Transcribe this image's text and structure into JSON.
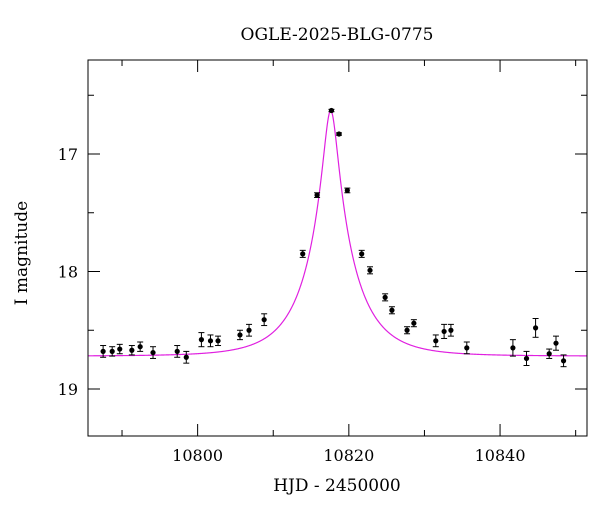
{
  "chart_data": {
    "type": "scatter",
    "title": "OGLE-2025-BLG-0775",
    "xlabel": "HJD - 2450000",
    "ylabel": "I magnitude",
    "xlim": [
      10785.5,
      10851.5
    ],
    "ylim": [
      19.4,
      16.2
    ],
    "y_inverted": true,
    "x_major_ticks": [
      10800,
      10820,
      10840
    ],
    "x_tick_labels": [
      "10800",
      "10820",
      "10840"
    ],
    "x_minor_ticks": [
      10790,
      10810,
      10830,
      10850
    ],
    "y_major_ticks": [
      17,
      18,
      19
    ],
    "y_tick_labels": [
      "17",
      "18",
      "19"
    ],
    "y_minor_ticks": [
      16.5,
      17.5,
      18.5
    ],
    "grid": false,
    "model": {
      "color": "#e020e0",
      "peak_time": 10817.6,
      "peak_mag": 16.63,
      "baseline_mag": 18.72,
      "einstein_time": 6.1
    },
    "series": [
      {
        "color": "#000000",
        "points": [
          {
            "x": 10787.5,
            "y": 18.68,
            "err": 0.05
          },
          {
            "x": 10788.7,
            "y": 18.68,
            "err": 0.04
          },
          {
            "x": 10789.7,
            "y": 18.66,
            "err": 0.04
          },
          {
            "x": 10791.3,
            "y": 18.67,
            "err": 0.04
          },
          {
            "x": 10792.4,
            "y": 18.64,
            "err": 0.04
          },
          {
            "x": 10794.1,
            "y": 18.69,
            "err": 0.05
          },
          {
            "x": 10797.3,
            "y": 18.68,
            "err": 0.05
          },
          {
            "x": 10798.5,
            "y": 18.73,
            "err": 0.05
          },
          {
            "x": 10800.5,
            "y": 18.58,
            "err": 0.06
          },
          {
            "x": 10801.7,
            "y": 18.59,
            "err": 0.05
          },
          {
            "x": 10802.7,
            "y": 18.59,
            "err": 0.04
          },
          {
            "x": 10805.6,
            "y": 18.54,
            "err": 0.04
          },
          {
            "x": 10806.8,
            "y": 18.5,
            "err": 0.05
          },
          {
            "x": 10808.8,
            "y": 18.41,
            "err": 0.05
          },
          {
            "x": 10813.9,
            "y": 17.85,
            "err": 0.03
          },
          {
            "x": 10815.8,
            "y": 17.35,
            "err": 0.02
          },
          {
            "x": 10817.7,
            "y": 16.63,
            "err": 0.01
          },
          {
            "x": 10818.7,
            "y": 16.83,
            "err": 0.01
          },
          {
            "x": 10819.8,
            "y": 17.31,
            "err": 0.02
          },
          {
            "x": 10821.7,
            "y": 17.85,
            "err": 0.03
          },
          {
            "x": 10822.8,
            "y": 17.99,
            "err": 0.03
          },
          {
            "x": 10824.8,
            "y": 18.22,
            "err": 0.03
          },
          {
            "x": 10825.7,
            "y": 18.33,
            "err": 0.03
          },
          {
            "x": 10827.7,
            "y": 18.5,
            "err": 0.03
          },
          {
            "x": 10828.6,
            "y": 18.44,
            "err": 0.03
          },
          {
            "x": 10831.5,
            "y": 18.59,
            "err": 0.05
          },
          {
            "x": 10832.6,
            "y": 18.51,
            "err": 0.06
          },
          {
            "x": 10833.5,
            "y": 18.5,
            "err": 0.05
          },
          {
            "x": 10835.6,
            "y": 18.65,
            "err": 0.05
          },
          {
            "x": 10841.7,
            "y": 18.65,
            "err": 0.07
          },
          {
            "x": 10843.5,
            "y": 18.74,
            "err": 0.06
          },
          {
            "x": 10844.7,
            "y": 18.48,
            "err": 0.08
          },
          {
            "x": 10846.5,
            "y": 18.7,
            "err": 0.04
          },
          {
            "x": 10847.4,
            "y": 18.61,
            "err": 0.06
          },
          {
            "x": 10848.4,
            "y": 18.76,
            "err": 0.05
          }
        ]
      }
    ]
  }
}
